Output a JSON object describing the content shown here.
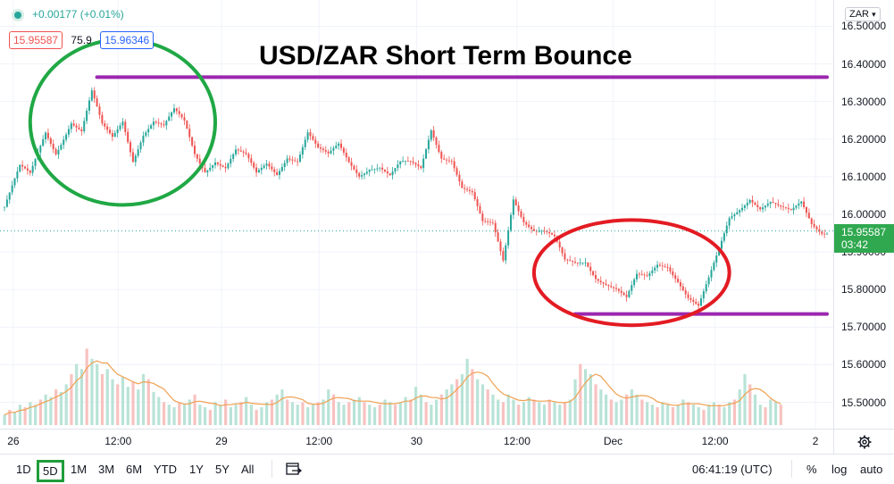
{
  "legend": {
    "change": "+0.00177 (+0.01%)",
    "bid": "15.95587",
    "spread": "75.9",
    "ask": "15.96346"
  },
  "chart_data": {
    "type": "candlestick",
    "title": "USD/ZAR Short Term Bounce",
    "currency": "ZAR",
    "ylim": [
      15.43,
      16.57
    ],
    "y_ticks": [
      "16.50000",
      "16.40000",
      "16.30000",
      "16.20000",
      "16.10000",
      "16.00000",
      "15.90000",
      "15.80000",
      "15.70000",
      "15.60000",
      "15.50000"
    ],
    "x_ticks": [
      "26",
      "12:00",
      "29",
      "12:00",
      "30",
      "12:00",
      "Dec",
      "12:00",
      "2"
    ],
    "last_price": "15.95587",
    "countdown": "03:42",
    "price_path": [
      [
        0,
        16.02
      ],
      [
        3,
        16.12
      ],
      [
        5,
        16.1
      ],
      [
        8,
        16.22
      ],
      [
        10,
        16.17
      ],
      [
        13,
        16.25
      ],
      [
        15,
        16.22
      ],
      [
        17,
        16.32
      ],
      [
        19,
        16.23
      ],
      [
        21,
        16.2
      ],
      [
        23,
        16.25
      ],
      [
        25,
        16.15
      ],
      [
        27,
        16.22
      ],
      [
        29,
        16.25
      ],
      [
        31,
        16.23
      ],
      [
        33,
        16.27
      ],
      [
        35,
        16.24
      ],
      [
        37,
        16.16
      ],
      [
        39,
        16.12
      ],
      [
        41,
        16.15
      ],
      [
        43,
        16.13
      ],
      [
        45,
        16.17
      ],
      [
        47,
        16.15
      ],
      [
        49,
        16.1
      ],
      [
        51,
        16.13
      ],
      [
        53,
        16.11
      ],
      [
        55,
        16.16
      ],
      [
        57,
        16.15
      ],
      [
        59,
        16.22
      ],
      [
        61,
        16.17
      ],
      [
        63,
        16.15
      ],
      [
        65,
        16.18
      ],
      [
        67,
        16.14
      ],
      [
        69,
        16.11
      ],
      [
        71,
        16.13
      ],
      [
        73,
        16.13
      ],
      [
        75,
        16.1
      ],
      [
        77,
        16.13
      ],
      [
        79,
        16.13
      ],
      [
        81,
        16.12
      ],
      [
        83,
        16.23
      ],
      [
        85,
        16.16
      ],
      [
        87,
        16.15
      ],
      [
        89,
        16.07
      ],
      [
        91,
        16.05
      ],
      [
        93,
        15.97
      ],
      [
        95,
        15.97
      ],
      [
        97,
        15.88
      ],
      [
        99,
        16.05
      ],
      [
        101,
        15.99
      ],
      [
        103,
        15.96
      ],
      [
        105,
        15.95
      ],
      [
        107,
        15.93
      ],
      [
        109,
        15.87
      ],
      [
        111,
        15.87
      ],
      [
        113,
        15.88
      ],
      [
        115,
        15.84
      ],
      [
        117,
        15.82
      ],
      [
        119,
        15.8
      ],
      [
        121,
        15.77
      ],
      [
        123,
        15.83
      ],
      [
        125,
        15.83
      ],
      [
        127,
        15.87
      ],
      [
        129,
        15.87
      ],
      [
        131,
        15.83
      ],
      [
        133,
        15.78
      ],
      [
        135,
        15.75
      ],
      [
        137,
        15.82
      ],
      [
        139,
        15.9
      ],
      [
        141,
        15.99
      ],
      [
        143,
        16.02
      ],
      [
        145,
        16.05
      ],
      [
        147,
        16.02
      ],
      [
        149,
        16.03
      ],
      [
        151,
        16.01
      ],
      [
        153,
        16.0
      ],
      [
        155,
        16.03
      ],
      [
        157,
        15.98
      ],
      [
        159,
        15.96
      ]
    ],
    "support_resistance": [
      {
        "from": 18,
        "to": 160,
        "value": 16.365
      },
      {
        "from": 111,
        "to": 160,
        "value": 15.735
      }
    ],
    "ellipses": [
      {
        "center": [
          23,
          16.245
        ],
        "rx": 18,
        "ry": 0.22,
        "color": "#20a845"
      },
      {
        "center": [
          122,
          15.845
        ],
        "rx": 19,
        "ry": 0.14,
        "color": "#e31b23"
      }
    ],
    "volume": [
      4,
      6,
      5,
      8,
      7,
      9,
      8,
      10,
      12,
      11,
      14,
      13,
      16,
      20,
      24,
      22,
      30,
      26,
      24,
      20,
      22,
      18,
      16,
      19,
      15,
      17,
      14,
      20,
      18,
      13,
      11,
      9,
      8,
      7,
      9,
      8,
      10,
      12,
      8,
      7,
      6,
      9,
      8,
      10,
      7,
      8,
      9,
      11,
      8,
      6,
      7,
      9,
      10,
      12,
      14,
      10,
      9,
      8,
      9,
      7,
      8,
      9,
      10,
      14,
      12,
      9,
      8,
      9,
      10,
      11,
      9,
      8,
      7,
      8,
      10,
      9,
      8,
      9,
      11,
      10,
      15,
      12,
      9,
      8,
      10,
      12,
      14,
      16,
      18,
      20,
      26,
      22,
      18,
      16,
      14,
      12,
      10,
      9,
      12,
      10,
      8,
      9,
      11,
      10,
      9,
      8,
      10,
      9,
      8,
      9,
      10,
      18,
      24,
      22,
      20,
      16,
      14,
      12,
      10,
      9,
      10,
      12,
      14,
      12,
      10,
      9,
      8,
      7,
      9,
      8,
      7,
      8,
      10,
      9,
      8,
      7,
      6,
      8,
      9,
      8,
      7,
      9,
      10,
      14,
      20,
      16,
      12,
      8,
      7,
      10,
      9,
      8
    ],
    "colors": {
      "up": "#26a69a",
      "down": "#ef5350",
      "line": "#9c27b0",
      "volume_ma": "#f0a050"
    }
  },
  "toolbar": {
    "timeframes": [
      "1D",
      "5D",
      "1M",
      "3M",
      "6M",
      "YTD",
      "1Y",
      "5Y",
      "All"
    ],
    "active_timeframe": "5D",
    "clock": "06:41:19 (UTC)",
    "percent": "%",
    "log": "log",
    "auto": "auto"
  }
}
